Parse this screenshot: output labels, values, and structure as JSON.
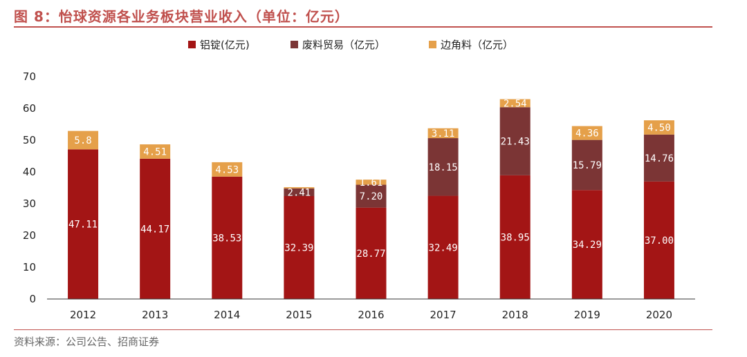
{
  "header": {
    "title": "图 8：怡球资源各业务板块营业收入（单位：亿元）"
  },
  "footer": {
    "source": "资料来源：公司公告、招商证券"
  },
  "chart_data": {
    "type": "bar",
    "stacked": true,
    "title": "图 8：怡球资源各业务板块营业收入（单位：亿元）",
    "xlabel": "",
    "ylabel": "",
    "ylim": [
      0,
      70
    ],
    "yticks": [
      0,
      10,
      20,
      30,
      40,
      50,
      60,
      70
    ],
    "grid": false,
    "legend_position": "top",
    "categories": [
      "2012",
      "2013",
      "2014",
      "2015",
      "2016",
      "2017",
      "2018",
      "2019",
      "2020"
    ],
    "series": [
      {
        "name": "铝锭(亿元)",
        "color": "#a31515",
        "values": [
          47.11,
          44.17,
          38.53,
          32.39,
          28.77,
          32.49,
          38.95,
          34.29,
          37.0
        ],
        "labels": [
          "47.11",
          "44.17",
          "38.53",
          "32.39",
          "28.77",
          "32.49",
          "38.95",
          "34.29",
          "37.00"
        ]
      },
      {
        "name": "废料贸易（亿元）",
        "color": "#7b3535",
        "values": [
          0,
          0,
          0,
          2.41,
          7.2,
          18.15,
          21.43,
          15.79,
          14.76
        ],
        "labels": [
          "",
          "",
          "",
          "2.41",
          "7.20",
          "18.15",
          "21.43",
          "15.79",
          "14.76"
        ]
      },
      {
        "name": "边角料（亿元）",
        "color": "#e5a04a",
        "values": [
          5.8,
          4.51,
          4.53,
          0.4,
          1.61,
          3.11,
          2.54,
          4.36,
          4.5
        ],
        "labels": [
          "5.8",
          "4.51",
          "4.53",
          "",
          "1.61",
          "3.11",
          "2.54",
          "4.36",
          "4.50"
        ]
      }
    ]
  }
}
